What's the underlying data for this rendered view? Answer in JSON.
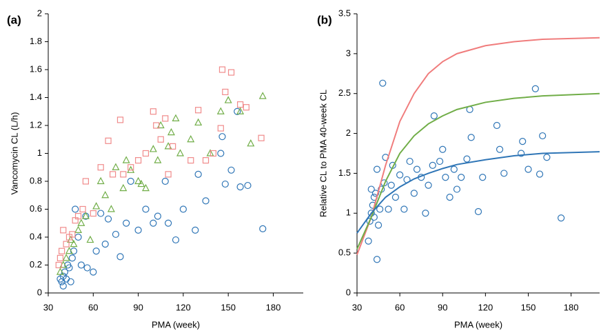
{
  "chart_data": [
    {
      "type": "scatter",
      "panel_label": "(a)",
      "x_label": "PMA (week)",
      "y_label": "Vancomycin CL (L/h)",
      "xlim": [
        30,
        200
      ],
      "ylim": [
        0,
        2
      ],
      "xticks": [
        30,
        60,
        90,
        120,
        150,
        180
      ],
      "yticks": [
        0,
        0.2,
        0.4,
        0.6,
        0.8,
        1,
        1.2,
        1.4,
        1.6,
        1.8,
        2
      ],
      "series": [
        {
          "marker": "circle",
          "color": "#2e75b6",
          "x": [
            38,
            39,
            40,
            40,
            41,
            42,
            43,
            44,
            45,
            46,
            47,
            48,
            50,
            52,
            55,
            56,
            60,
            62,
            65,
            68,
            70,
            75,
            78,
            82,
            85,
            90,
            95,
            100,
            103,
            108,
            110,
            115,
            120,
            128,
            130,
            135,
            145,
            146,
            148,
            152,
            156,
            158,
            163,
            173
          ],
          "values": [
            0.1,
            0.08,
            0.12,
            0.05,
            0.15,
            0.1,
            0.2,
            0.18,
            0.08,
            0.25,
            0.3,
            0.6,
            0.4,
            0.2,
            0.55,
            0.18,
            0.15,
            0.3,
            0.57,
            0.35,
            0.53,
            0.42,
            0.26,
            0.5,
            0.8,
            0.45,
            0.6,
            0.5,
            0.55,
            0.8,
            0.5,
            0.38,
            0.6,
            0.45,
            0.85,
            0.66,
            1.0,
            1.12,
            0.78,
            0.88,
            1.3,
            0.76,
            0.77,
            0.46
          ]
        },
        {
          "marker": "triangle",
          "color": "#70ad47",
          "x": [
            38,
            40,
            42,
            44,
            45,
            47,
            50,
            52,
            55,
            58,
            62,
            65,
            68,
            72,
            75,
            80,
            82,
            85,
            90,
            92,
            95,
            100,
            103,
            105,
            110,
            112,
            115,
            118,
            125,
            130,
            138,
            145,
            150,
            158,
            165,
            173
          ],
          "values": [
            0.15,
            0.2,
            0.25,
            0.3,
            0.38,
            0.35,
            0.45,
            0.5,
            0.55,
            0.38,
            0.62,
            0.8,
            0.7,
            0.6,
            0.9,
            0.75,
            0.95,
            0.88,
            0.8,
            0.78,
            0.75,
            1.03,
            0.95,
            1.2,
            1.05,
            1.15,
            1.25,
            1.0,
            1.1,
            1.22,
            1.0,
            1.3,
            1.38,
            1.3,
            1.07,
            1.41
          ]
        },
        {
          "marker": "square",
          "color": "#f08a8a",
          "x": [
            37,
            38,
            39,
            40,
            42,
            44,
            46,
            48,
            50,
            53,
            55,
            60,
            65,
            70,
            73,
            78,
            80,
            85,
            90,
            95,
            100,
            102,
            105,
            108,
            110,
            113,
            125,
            130,
            135,
            140,
            145,
            146,
            148,
            152,
            158,
            162,
            172
          ],
          "values": [
            0.2,
            0.25,
            0.3,
            0.45,
            0.35,
            0.4,
            0.42,
            0.52,
            0.55,
            0.6,
            0.8,
            0.57,
            0.9,
            1.09,
            0.85,
            1.24,
            0.85,
            0.9,
            0.95,
            1.0,
            1.3,
            1.2,
            1.1,
            1.25,
            0.85,
            1.05,
            0.95,
            1.31,
            0.95,
            1.0,
            1.18,
            1.6,
            1.44,
            1.58,
            1.35,
            1.33,
            1.11
          ]
        }
      ]
    },
    {
      "type": "scatter",
      "panel_label": "(b)",
      "x_label": "PMA (week)",
      "y_label": "Relative CL to PMA 40-week CL",
      "xlim": [
        30,
        200
      ],
      "ylim": [
        0,
        3.5
      ],
      "xticks": [
        30,
        60,
        90,
        120,
        150,
        180
      ],
      "yticks": [
        0,
        0.5,
        1,
        1.5,
        2,
        2.5,
        3,
        3.5
      ],
      "series": [
        {
          "marker": "circle",
          "color": "#2e75b6",
          "x": [
            38,
            39,
            40,
            40,
            41,
            42,
            42,
            43,
            44,
            44,
            45,
            46,
            47,
            48,
            49,
            50,
            52,
            54,
            55,
            57,
            60,
            63,
            65,
            67,
            70,
            72,
            75,
            78,
            80,
            83,
            84,
            88,
            90,
            92,
            95,
            98,
            100,
            103,
            107,
            109,
            110,
            115,
            118,
            128,
            130,
            133,
            145,
            146,
            150,
            155,
            158,
            160,
            163,
            173
          ],
          "values": [
            0.65,
            0.9,
            1.0,
            1.3,
            1.1,
            0.95,
            1.2,
            1.25,
            0.42,
            1.55,
            0.85,
            1.05,
            1.3,
            2.63,
            1.38,
            1.7,
            1.05,
            1.35,
            1.6,
            1.2,
            1.48,
            1.05,
            1.42,
            1.65,
            1.25,
            1.55,
            1.45,
            1.0,
            1.35,
            1.6,
            2.22,
            1.65,
            1.8,
            1.45,
            1.2,
            1.55,
            1.3,
            1.45,
            1.68,
            2.3,
            1.95,
            1.02,
            1.45,
            2.1,
            1.8,
            1.5,
            1.75,
            1.9,
            1.55,
            2.56,
            1.49,
            1.97,
            1.7,
            0.94
          ]
        },
        {
          "marker": "line",
          "color": "#f07c7c",
          "x": [
            30,
            40,
            50,
            60,
            70,
            80,
            90,
            100,
            120,
            140,
            160,
            200
          ],
          "values": [
            0.48,
            0.95,
            1.6,
            2.15,
            2.5,
            2.75,
            2.9,
            3.0,
            3.1,
            3.15,
            3.18,
            3.2
          ]
        },
        {
          "marker": "line",
          "color": "#70ad47",
          "x": [
            30,
            40,
            50,
            60,
            70,
            80,
            90,
            100,
            120,
            140,
            160,
            200
          ],
          "values": [
            0.55,
            0.95,
            1.4,
            1.75,
            1.97,
            2.12,
            2.22,
            2.3,
            2.39,
            2.44,
            2.47,
            2.5
          ]
        },
        {
          "marker": "line",
          "color": "#2e75b6",
          "x": [
            30,
            40,
            50,
            60,
            70,
            80,
            90,
            100,
            120,
            140,
            160,
            200
          ],
          "values": [
            0.75,
            1.0,
            1.2,
            1.33,
            1.43,
            1.5,
            1.56,
            1.61,
            1.67,
            1.72,
            1.75,
            1.77
          ]
        }
      ]
    }
  ]
}
